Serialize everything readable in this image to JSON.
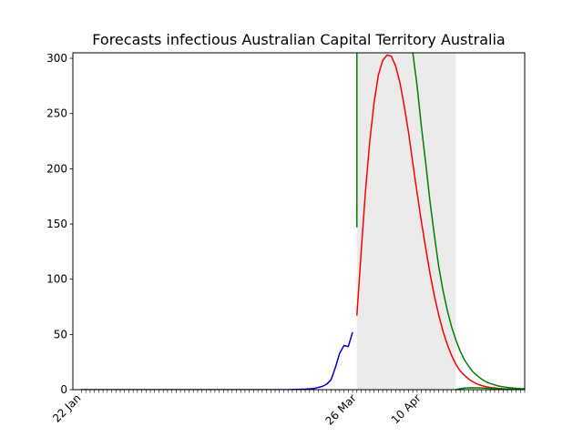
{
  "chart_data": {
    "type": "line",
    "title": "Forecasts infectious Australian Capital Territory Australia",
    "xlabel": "",
    "ylabel": "",
    "x_range_days_after_22jan": [
      -2,
      103
    ],
    "ylim": [
      0,
      305
    ],
    "y_ticks": [
      0,
      50,
      100,
      150,
      200,
      250,
      300
    ],
    "x_tick_labels": [
      {
        "label": "22 Jan",
        "date": "2020-01-22"
      },
      {
        "label": "26 Mar",
        "date": "2020-03-26"
      },
      {
        "label": "10 Apr",
        "date": "2020-04-10"
      }
    ],
    "daily_ticks": {
      "start": "2020-01-22",
      "end": "2020-05-04"
    },
    "shaded_region": {
      "x_start": "2020-03-26",
      "x_end": "2020-04-18",
      "color": "#ebebeb"
    },
    "grid": false,
    "series": [
      {
        "color": "#0000cc",
        "points": [
          [
            "2020-01-22",
            0
          ],
          [
            "2020-02-01",
            0
          ],
          [
            "2020-02-15",
            0
          ],
          [
            "2020-03-01",
            0
          ],
          [
            "2020-03-10",
            0
          ],
          [
            "2020-03-14",
            0.5
          ],
          [
            "2020-03-16",
            1
          ],
          [
            "2020-03-17",
            2
          ],
          [
            "2020-03-18",
            3
          ],
          [
            "2020-03-19",
            5
          ],
          [
            "2020-03-20",
            9
          ],
          [
            "2020-03-21",
            20
          ],
          [
            "2020-03-22",
            33
          ],
          [
            "2020-03-23",
            40
          ],
          [
            "2020-03-24",
            39
          ],
          [
            "2020-03-25",
            52
          ]
        ]
      },
      {
        "color": "#ff0000",
        "points": [
          [
            "2020-03-26",
            67
          ],
          [
            "2020-03-27",
            125
          ],
          [
            "2020-03-28",
            180
          ],
          [
            "2020-03-29",
            225
          ],
          [
            "2020-03-30",
            260
          ],
          [
            "2020-03-31",
            285
          ],
          [
            "2020-04-01",
            298
          ],
          [
            "2020-04-02",
            303
          ],
          [
            "2020-04-03",
            302
          ],
          [
            "2020-04-04",
            293
          ],
          [
            "2020-04-05",
            278
          ],
          [
            "2020-04-06",
            257
          ],
          [
            "2020-04-07",
            233
          ],
          [
            "2020-04-08",
            205
          ],
          [
            "2020-04-09",
            178
          ],
          [
            "2020-04-10",
            152
          ],
          [
            "2020-04-11",
            128
          ],
          [
            "2020-04-12",
            105
          ],
          [
            "2020-04-13",
            85
          ],
          [
            "2020-04-14",
            68
          ],
          [
            "2020-04-15",
            53
          ],
          [
            "2020-04-16",
            41
          ],
          [
            "2020-04-17",
            31
          ],
          [
            "2020-04-18",
            23
          ],
          [
            "2020-04-19",
            17
          ],
          [
            "2020-04-20",
            13
          ],
          [
            "2020-04-21",
            9.5
          ],
          [
            "2020-04-22",
            7
          ],
          [
            "2020-04-23",
            5
          ],
          [
            "2020-04-24",
            3.7
          ],
          [
            "2020-04-25",
            2.7
          ],
          [
            "2020-04-26",
            2
          ],
          [
            "2020-04-28",
            1.1
          ],
          [
            "2020-04-30",
            0.6
          ],
          [
            "2020-05-02",
            0.3
          ],
          [
            "2020-05-04",
            0.15
          ]
        ]
      },
      {
        "color": "#008000",
        "points": [
          [
            "2020-03-26",
            147
          ],
          [
            "2020-03-26",
            340
          ],
          [
            "2020-04-07",
            340
          ],
          [
            "2020-04-08",
            305
          ],
          [
            "2020-04-09",
            275
          ],
          [
            "2020-04-10",
            238
          ],
          [
            "2020-04-11",
            205
          ],
          [
            "2020-04-12",
            170
          ],
          [
            "2020-04-13",
            140
          ],
          [
            "2020-04-14",
            112
          ],
          [
            "2020-04-15",
            90
          ],
          [
            "2020-04-16",
            72
          ],
          [
            "2020-04-17",
            57
          ],
          [
            "2020-04-18",
            45
          ],
          [
            "2020-04-19",
            35
          ],
          [
            "2020-04-20",
            27
          ],
          [
            "2020-04-21",
            21
          ],
          [
            "2020-04-22",
            16
          ],
          [
            "2020-04-23",
            12.5
          ],
          [
            "2020-04-24",
            9.5
          ],
          [
            "2020-04-25",
            7.2
          ],
          [
            "2020-04-26",
            5.5
          ],
          [
            "2020-04-28",
            3.2
          ],
          [
            "2020-04-30",
            2
          ],
          [
            "2020-05-02",
            1.2
          ],
          [
            "2020-05-04",
            0.7
          ]
        ]
      },
      {
        "color": "#008000",
        "points": [
          [
            "2020-04-18",
            0.1
          ],
          [
            "2020-04-19",
            0.8
          ],
          [
            "2020-04-20",
            1.4
          ],
          [
            "2020-04-21",
            1.7
          ],
          [
            "2020-04-22",
            1.8
          ],
          [
            "2020-04-23",
            1.7
          ],
          [
            "2020-04-24",
            1.5
          ],
          [
            "2020-04-26",
            1.1
          ],
          [
            "2020-04-28",
            0.7
          ],
          [
            "2020-04-30",
            0.45
          ],
          [
            "2020-05-02",
            0.3
          ],
          [
            "2020-05-04",
            0.2
          ]
        ]
      }
    ]
  }
}
